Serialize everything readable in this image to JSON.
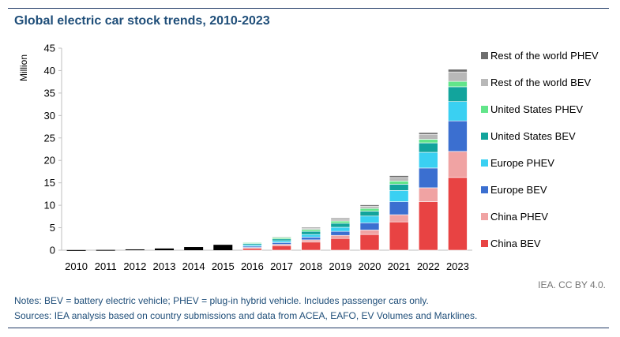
{
  "title": "Global electric car stock trends, 2010-2023",
  "credit": "IEA. CC BY 4.0.",
  "notes": "Notes: BEV = battery electric vehicle; PHEV = plug-in hybrid vehicle. Includes passenger cars only.",
  "sources": "Sources: IEA analysis based on country submissions and data from ACEA, EAFO, EV Volumes and Marklines.",
  "chart_data": {
    "type": "bar",
    "stacked": true,
    "ylabel": "Million",
    "ylim": [
      0,
      45
    ],
    "yticks": [
      0,
      5,
      10,
      15,
      20,
      25,
      30,
      35,
      40,
      45
    ],
    "grid": false,
    "legend_position": "right",
    "categories": [
      "2010",
      "2011",
      "2012",
      "2013",
      "2014",
      "2015",
      "2016",
      "2017",
      "2018",
      "2019",
      "2020",
      "2021",
      "2022",
      "2023"
    ],
    "early_total": {
      "color": "#000000",
      "values": [
        0.02,
        0.06,
        0.18,
        0.38,
        0.7,
        1.2
      ]
    },
    "series": [
      {
        "name": "China BEV",
        "color": "#e84343",
        "values": [
          0,
          0,
          0,
          0,
          0,
          0,
          0.4,
          1.0,
          1.8,
          2.6,
          3.5,
          6.3,
          10.8,
          16.2
        ]
      },
      {
        "name": "China PHEV",
        "color": "#f0a3a3",
        "values": [
          0,
          0,
          0,
          0,
          0,
          0,
          0.2,
          0.3,
          0.5,
          0.7,
          1.0,
          1.6,
          3.1,
          5.8
        ]
      },
      {
        "name": "Europe BEV",
        "color": "#3b6fd0",
        "values": [
          0,
          0,
          0,
          0,
          0,
          0,
          0.3,
          0.4,
          0.6,
          0.9,
          1.6,
          2.9,
          4.4,
          6.8
        ]
      },
      {
        "name": "Europe PHEV",
        "color": "#3ad0f2",
        "values": [
          0,
          0,
          0,
          0,
          0,
          0,
          0.3,
          0.4,
          0.6,
          0.9,
          1.5,
          2.5,
          3.5,
          4.3
        ]
      },
      {
        "name": "United States BEV",
        "color": "#12a49c",
        "values": [
          0,
          0,
          0,
          0,
          0,
          0,
          0.3,
          0.4,
          0.7,
          0.9,
          1.1,
          1.4,
          2.1,
          3.3
        ]
      },
      {
        "name": "United States PHEV",
        "color": "#62e58a",
        "values": [
          0,
          0,
          0,
          0,
          0,
          0,
          0.2,
          0.3,
          0.4,
          0.5,
          0.6,
          0.7,
          0.8,
          1.2
        ]
      },
      {
        "name": "Rest of the world BEV",
        "color": "#b8b8b8",
        "values": [
          0,
          0,
          0,
          0,
          0,
          0,
          0.1,
          0.2,
          0.3,
          0.5,
          0.5,
          0.8,
          1.1,
          2.1
        ]
      },
      {
        "name": "Rest of the world PHEV",
        "color": "#6e6e6e",
        "values": [
          0,
          0,
          0,
          0,
          0,
          0,
          0.1,
          0.1,
          0.2,
          0.2,
          0.3,
          0.4,
          0.4,
          0.6
        ]
      }
    ]
  }
}
